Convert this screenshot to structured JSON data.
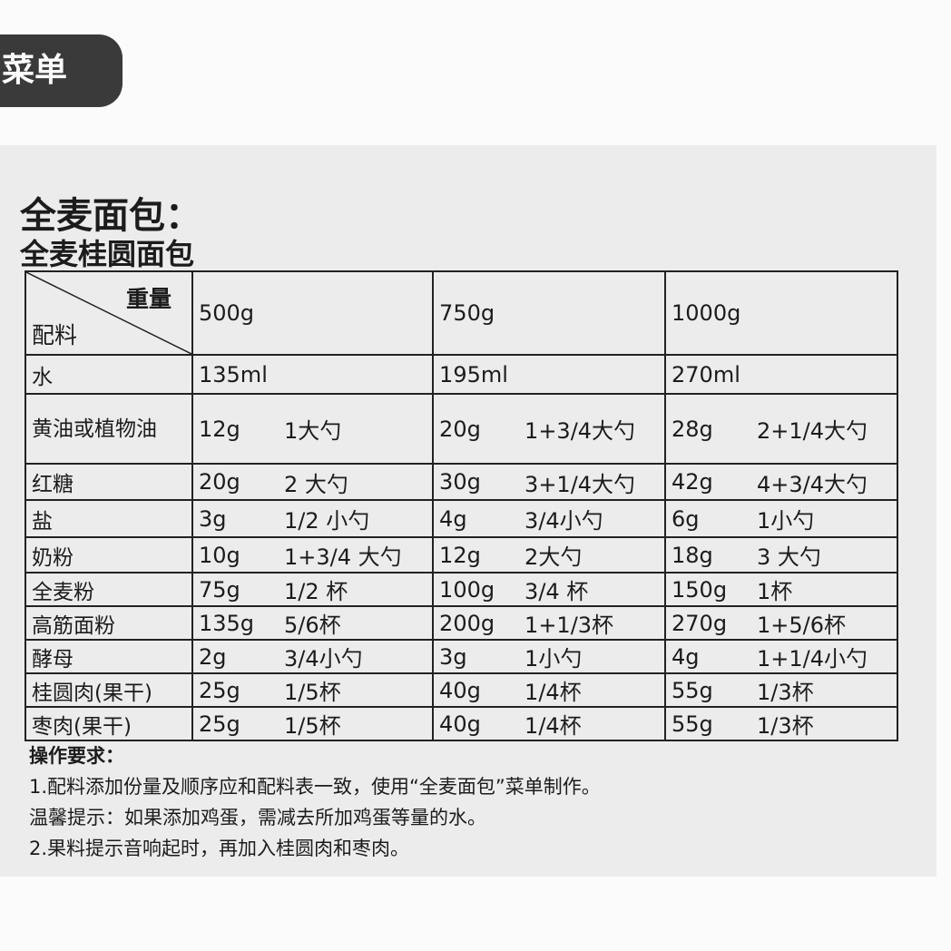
{
  "tab_label": "菜单",
  "title": "全麦面包：",
  "subtitle": "全麦桂圆面包",
  "table": {
    "corner_weight": "重量",
    "corner_ingredient": "配料",
    "sizes": [
      "500g",
      "750g",
      "1000g"
    ],
    "rows": [
      {
        "name": "水",
        "cells": [
          [
            "135ml",
            ""
          ],
          [
            "195ml",
            ""
          ],
          [
            "270ml",
            ""
          ]
        ]
      },
      {
        "name": "黄油或植物油",
        "cells": [
          [
            "12g",
            "1大勺"
          ],
          [
            "20g",
            "1+3/4大勺"
          ],
          [
            "28g",
            "2+1/4大勺"
          ]
        ]
      },
      {
        "name": "红糖",
        "cells": [
          [
            "20g",
            "2 大勺"
          ],
          [
            "30g",
            "3+1/4大勺"
          ],
          [
            "42g",
            "4+3/4大勺"
          ]
        ]
      },
      {
        "name": "盐",
        "cells": [
          [
            "3g",
            "1/2 小勺"
          ],
          [
            "4g",
            "3/4小勺"
          ],
          [
            "6g",
            "1小勺"
          ]
        ]
      },
      {
        "name": "奶粉",
        "cells": [
          [
            "10g",
            "1+3/4 大勺"
          ],
          [
            "12g",
            "2大勺"
          ],
          [
            "18g",
            "3 大勺"
          ]
        ]
      },
      {
        "name": "全麦粉",
        "cells": [
          [
            "75g",
            "1/2 杯"
          ],
          [
            "100g",
            "3/4 杯"
          ],
          [
            "150g",
            "1杯"
          ]
        ]
      },
      {
        "name": "高筋面粉",
        "cells": [
          [
            "135g",
            "5/6杯"
          ],
          [
            "200g",
            "1+1/3杯"
          ],
          [
            "270g",
            "1+5/6杯"
          ]
        ]
      },
      {
        "name": "酵母",
        "cells": [
          [
            "2g",
            "3/4小勺"
          ],
          [
            "3g",
            "1小勺"
          ],
          [
            "4g",
            "1+1/4小勺"
          ]
        ]
      },
      {
        "name": "桂圆肉(果干)",
        "cells": [
          [
            "25g",
            "1/5杯"
          ],
          [
            "40g",
            "1/4杯"
          ],
          [
            "55g",
            "1/3杯"
          ]
        ]
      },
      {
        "name": "枣肉(果干)",
        "cells": [
          [
            "25g",
            "1/5杯"
          ],
          [
            "40g",
            "1/4杯"
          ],
          [
            "55g",
            "1/3杯"
          ]
        ]
      }
    ]
  },
  "notes": {
    "heading": "操作要求：",
    "lines": [
      "1.配料添加份量及顺序应和配料表一致，使用“全麦面包”菜单制作。",
      "温馨提示：如果添加鸡蛋，需减去所加鸡蛋等量的水。",
      "2.果料提示音响起时，再加入桂圆肉和枣肉。"
    ]
  }
}
